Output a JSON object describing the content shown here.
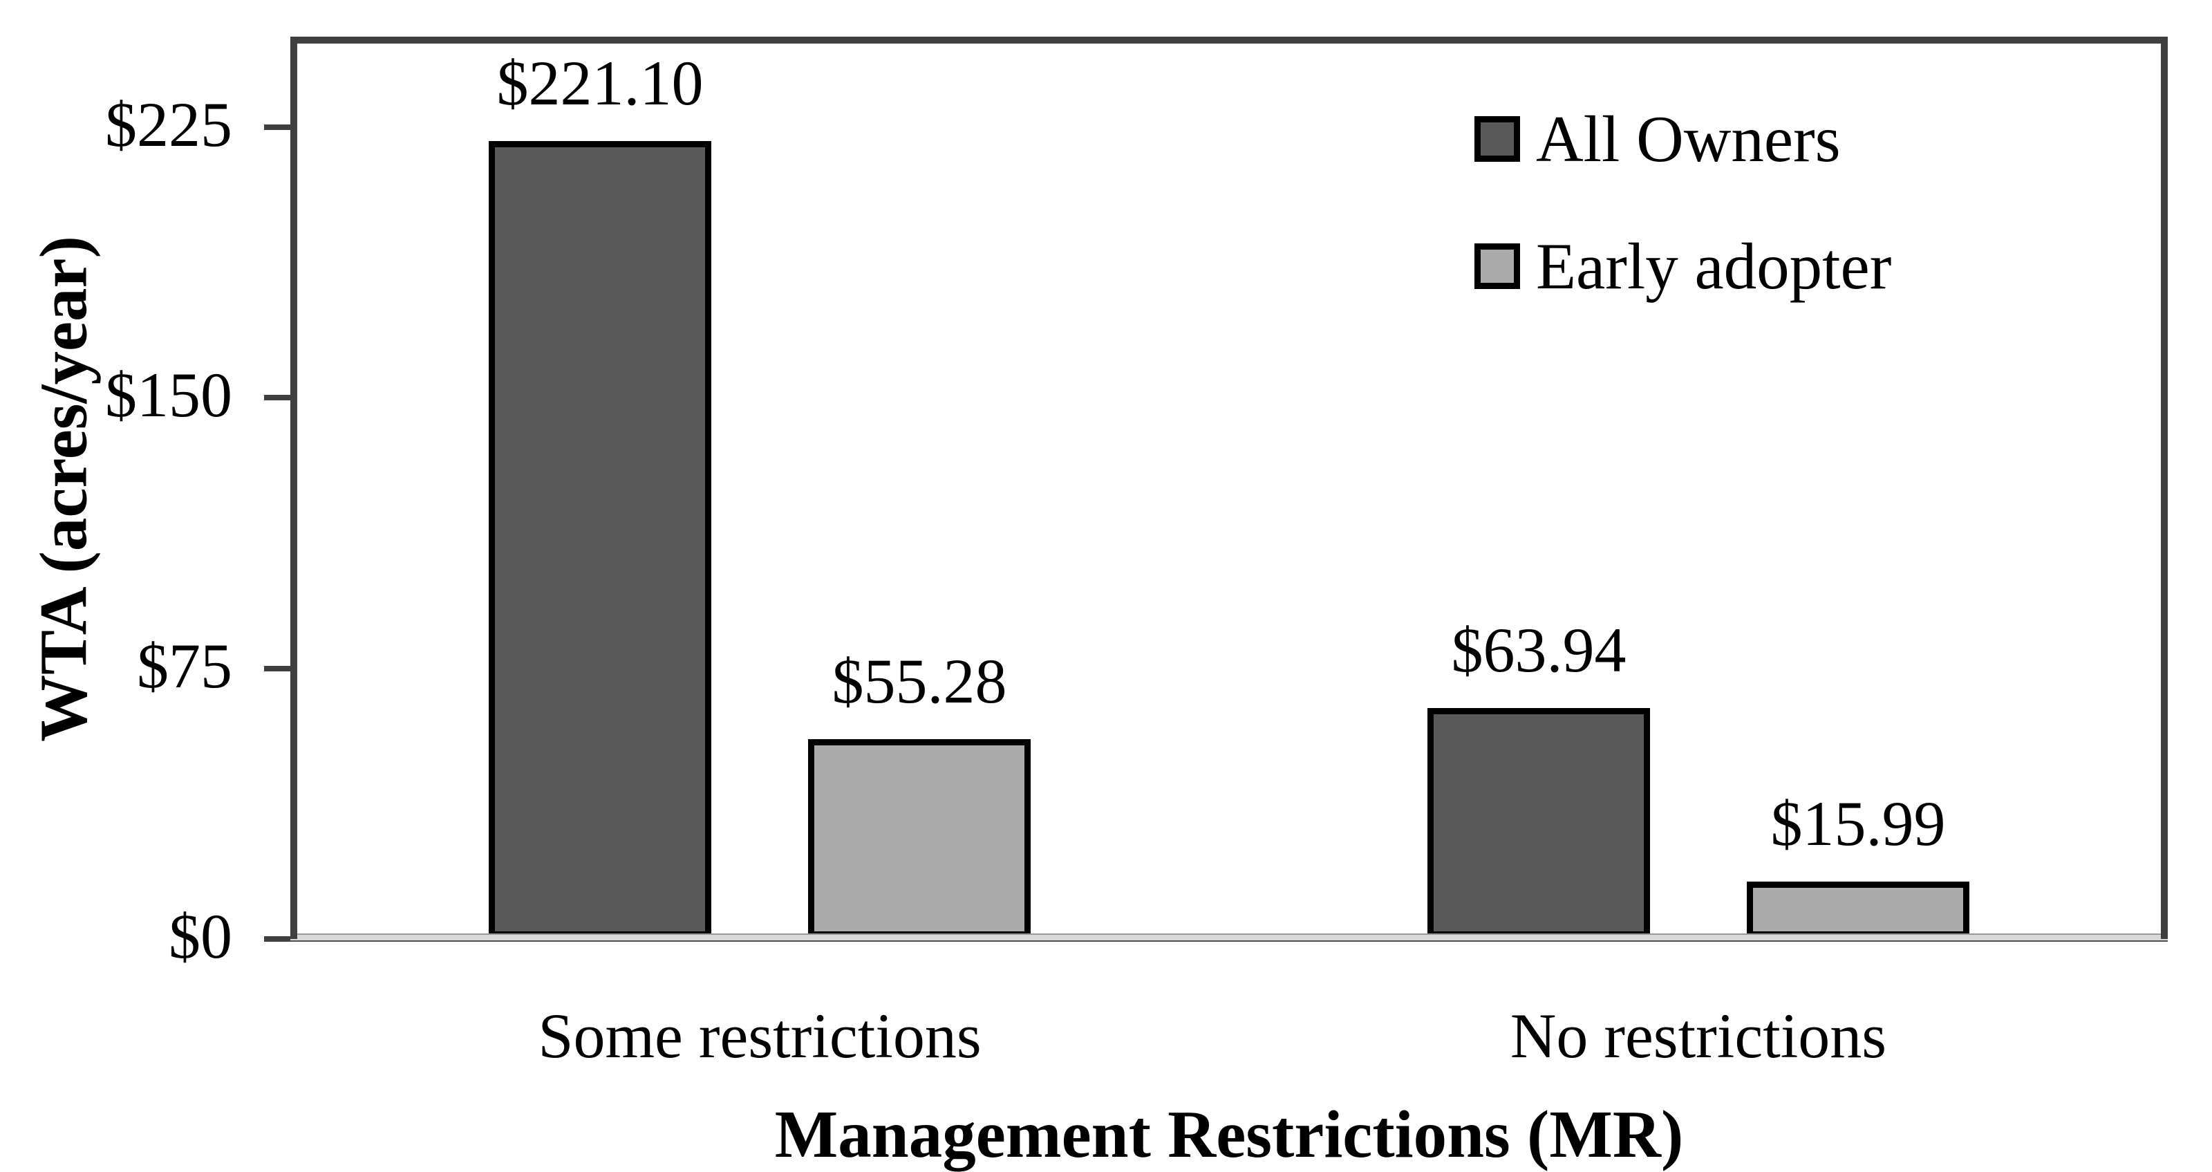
{
  "chart_data": {
    "type": "bar",
    "title": "",
    "categories": [
      "Some restrictions",
      "No restrictions"
    ],
    "series": [
      {
        "name": "All Owners",
        "color": "#595959",
        "values": [
          221.1,
          63.94
        ],
        "data_labels": [
          "$221.10",
          "$63.94"
        ]
      },
      {
        "name": "Early adopter",
        "color": "#ababab",
        "values": [
          55.28,
          15.99
        ],
        "data_labels": [
          "$55.28",
          "$15.99"
        ]
      }
    ],
    "xlabel": "Management Restrictions (MR)",
    "ylabel": "WTA (acres/year)",
    "ylim": [
      0,
      250
    ],
    "yticks": [
      {
        "value": 0,
        "label": "$0"
      },
      {
        "value": 75,
        "label": "$75"
      },
      {
        "value": 150,
        "label": "$150"
      },
      {
        "value": 225,
        "label": "$225"
      }
    ],
    "legend": {
      "position": "top-right",
      "entries": [
        "All Owners",
        "Early adopter"
      ]
    },
    "grid": false,
    "colors": {
      "bar_border": "#000000",
      "frame": "#3f3f3f",
      "baseline": "#d9d9d9",
      "text": "#000000",
      "background": "#ffffff"
    }
  }
}
